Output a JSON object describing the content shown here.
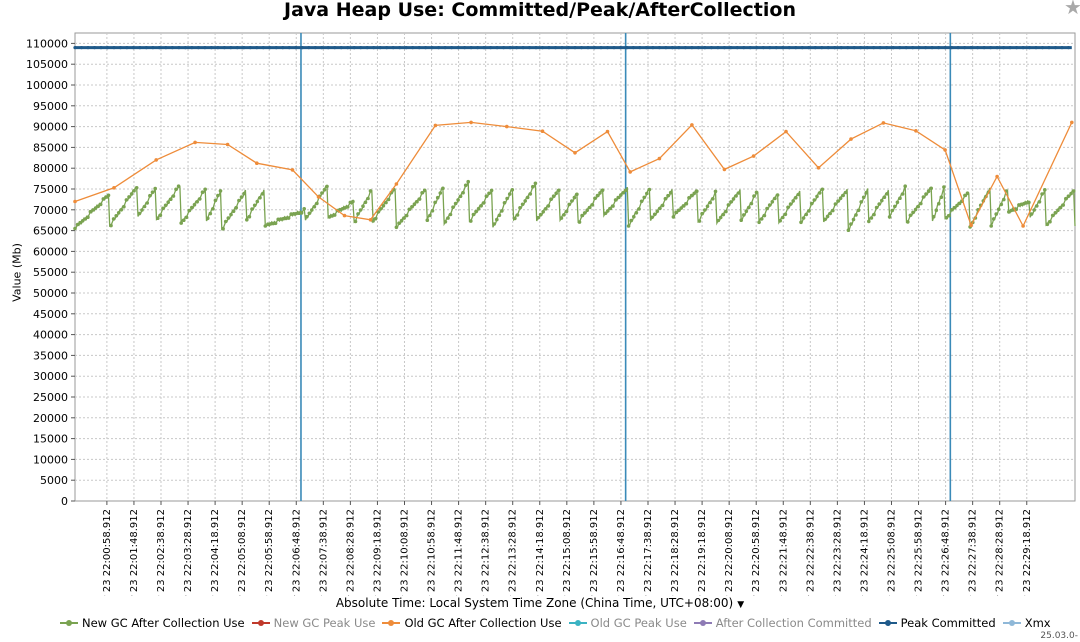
{
  "chart_data": {
    "type": "line",
    "title": "Java Heap Use: Committed/Peak/AfterCollection",
    "ylabel": "Value (Mb)",
    "xlabel": "Absolute Time: Local System Time Zone (China Time, UTC+08:00)",
    "ylim": [
      0,
      112500
    ],
    "yticks": [
      0,
      5000,
      10000,
      15000,
      20000,
      25000,
      30000,
      35000,
      40000,
      45000,
      50000,
      55000,
      60000,
      65000,
      70000,
      75000,
      80000,
      85000,
      90000,
      95000,
      100000,
      105000,
      110000
    ],
    "x_range_minutes": [
      "22:00:00",
      "22:30:48"
    ],
    "x_tick_labels": [
      "May 23 22:00:58.912",
      "May 23 22:01:48.912",
      "May 23 22:02:38.912",
      "May 23 22:03:28.912",
      "May 23 22:04:18.912",
      "May 23 22:05:08.912",
      "May 23 22:05:58.912",
      "May 23 22:06:48.912",
      "May 23 22:07:38.912",
      "May 23 22:08:28.912",
      "May 23 22:09:18.912",
      "May 23 22:10:08.912",
      "May 23 22:10:58.912",
      "May 23 22:11:48.912",
      "May 23 22:12:38.912",
      "May 23 22:13:28.912",
      "May 23 22:14:18.912",
      "May 23 22:15:08.912",
      "May 23 22:15:58.912",
      "May 23 22:16:48.912",
      "May 23 22:17:38.912",
      "May 23 22:18:28.912",
      "May 23 22:19:18.912",
      "May 23 22:20:08.912",
      "May 23 22:20:58.912",
      "May 23 22:21:48.912",
      "May 23 22:22:38.912",
      "May 23 22:23:28.912",
      "May 23 22:24:18.912",
      "May 23 22:25:08.912",
      "May 23 22:25:58.912",
      "May 23 22:26:48.912",
      "May 23 22:27:38.912",
      "May 23 22:28:28.912",
      "May 23 22:29:18.912"
    ],
    "x_tick_start_min": 0.982,
    "x_tick_step_min": 0.8333,
    "grid": true,
    "legend": "bottom",
    "vertical_markers_min": [
      6.96,
      16.96,
      26.96
    ],
    "marker_color": "#3a8ab8",
    "series": [
      {
        "name": "New GC After Collection Use",
        "color": "#7aa351",
        "marker": true,
        "sawtooth": {
          "starts_min": [
            0.0,
            1.07,
            1.94,
            2.51,
            3.27,
            4.05,
            4.52,
            5.29,
            5.86,
            7.1,
            7.8,
            8.6,
            9.18,
            9.9,
            10.85,
            11.37,
            12.15,
            12.87,
            13.51,
            14.22,
            14.94,
            15.5,
            16.29,
            17.05,
            17.73,
            18.43,
            19.19,
            19.77,
            20.52,
            21.07,
            21.68,
            22.36,
            23.06,
            23.82,
            24.45,
            25.09,
            25.61,
            26.41,
            26.8,
            27.57,
            28.22,
            28.76,
            29.42,
            29.91
          ],
          "start_values": [
            65500,
            66100,
            68400,
            67700,
            66800,
            67300,
            65300,
            67600,
            66100,
            67500,
            68100,
            67000,
            67300,
            65800,
            67500,
            66600,
            67200,
            65800,
            67600,
            67300,
            67500,
            67000,
            68600,
            66100,
            67400,
            68300,
            67100,
            66800,
            67500,
            67000,
            66900,
            67000,
            67100,
            65100,
            67200,
            68300,
            67000,
            67300,
            67900,
            65900,
            66100,
            69500,
            68200,
            66300
          ],
          "peak_values": [
            73800,
            76100,
            75600,
            76400,
            75200,
            75200,
            74900,
            75300,
            70000,
            76300,
            72000,
            75300,
            75600,
            75300,
            76000,
            77100,
            75100,
            75600,
            76700,
            75300,
            74400,
            75300,
            75800,
            75600,
            75000,
            75000,
            74600,
            75300,
            75100,
            74400,
            75000,
            75800,
            75400,
            75400,
            75200,
            75900,
            75800,
            76000,
            74500,
            75900,
            75500,
            72300,
            75200,
            75100
          ],
          "end_min": 30.8,
          "end_value": 66100
        }
      },
      {
        "name": "New GC Peak Use",
        "color": "#c0392b",
        "marker": true,
        "values": []
      },
      {
        "name": "Old GC After Collection Use",
        "color": "#ee8c3a",
        "marker": true,
        "x_min": [
          0.0,
          1.2,
          2.5,
          3.7,
          4.7,
          5.6,
          6.7,
          7.5,
          8.3,
          9.1,
          9.9,
          11.1,
          12.2,
          13.3,
          14.4,
          15.4,
          16.4,
          17.1,
          18.0,
          19.0,
          20.0,
          20.9,
          21.9,
          22.9,
          23.9,
          24.9,
          25.9,
          26.8,
          27.6,
          28.4,
          29.2,
          30.7
        ],
        "values": [
          72000,
          75300,
          82000,
          86200,
          85700,
          81200,
          79600,
          73100,
          68600,
          67600,
          76200,
          90300,
          91000,
          90000,
          88900,
          83700,
          88800,
          79100,
          82300,
          90400,
          79700,
          82900,
          88800,
          80100,
          87000,
          90900,
          89000,
          84400,
          66300,
          78000,
          66100,
          91000
        ]
      },
      {
        "name": "Old GC Peak Use",
        "color": "#3bb3c3",
        "marker": true,
        "values": []
      },
      {
        "name": "After Collection Committed",
        "color": "#8e7bb5",
        "marker": true,
        "values": []
      },
      {
        "name": "Peak Committed",
        "color": "#1f5a8a",
        "marker": true,
        "x_min": [
          0.0,
          30.8
        ],
        "values": [
          109000,
          109000
        ]
      },
      {
        "name": "Xmx",
        "color": "#8fb8d8",
        "marker": true,
        "values": []
      }
    ]
  },
  "legend_dimmed": [
    false,
    true,
    false,
    true,
    true,
    false,
    false
  ],
  "version_text": "25.03.0-"
}
